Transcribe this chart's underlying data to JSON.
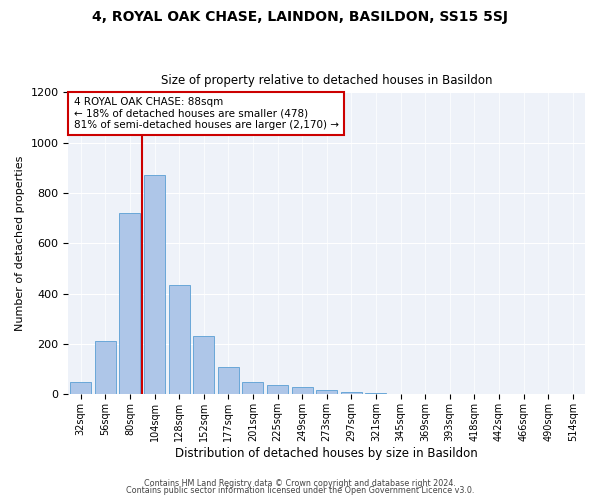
{
  "title": "4, ROYAL OAK CHASE, LAINDON, BASILDON, SS15 5SJ",
  "subtitle": "Size of property relative to detached houses in Basildon",
  "xlabel": "Distribution of detached houses by size in Basildon",
  "ylabel": "Number of detached properties",
  "footer_line1": "Contains HM Land Registry data © Crown copyright and database right 2024.",
  "footer_line2": "Contains public sector information licensed under the Open Government Licence v3.0.",
  "annotation_title": "4 ROYAL OAK CHASE: 88sqm",
  "annotation_line1": "← 18% of detached houses are smaller (478)",
  "annotation_line2": "81% of semi-detached houses are larger (2,170) →",
  "bar_color": "#aec6e8",
  "bar_edge_color": "#5a9fd4",
  "vline_color": "#cc0000",
  "annotation_box_edge": "#cc0000",
  "categories": [
    "32sqm",
    "56sqm",
    "80sqm",
    "104sqm",
    "128sqm",
    "152sqm",
    "177sqm",
    "201sqm",
    "225sqm",
    "249sqm",
    "273sqm",
    "297sqm",
    "321sqm",
    "345sqm",
    "369sqm",
    "393sqm",
    "418sqm",
    "442sqm",
    "466sqm",
    "490sqm",
    "514sqm"
  ],
  "values": [
    50,
    210,
    720,
    870,
    435,
    230,
    110,
    47,
    38,
    28,
    18,
    8,
    5,
    0,
    0,
    0,
    0,
    0,
    0,
    0,
    0
  ],
  "ylim": [
    0,
    1200
  ],
  "yticks": [
    0,
    200,
    400,
    600,
    800,
    1000,
    1200
  ],
  "vline_x_index": 2.5,
  "figsize": [
    6.0,
    5.0
  ],
  "dpi": 100,
  "bg_color": "#eef2f9"
}
